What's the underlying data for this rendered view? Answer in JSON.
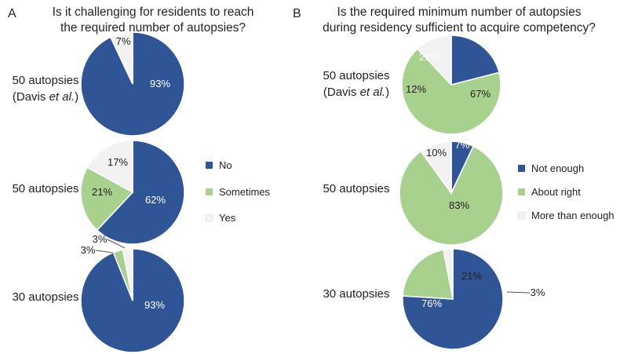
{
  "colors": {
    "dark": "#2f5597",
    "mid": "#a9d18e",
    "light": "#f2f2f2"
  },
  "chart_data": [
    {
      "type": "pie",
      "panel": "A",
      "title": [
        "Is it challenging for residents to reach",
        "the required number of autopsies?"
      ],
      "legend": [
        "No",
        "Sometimes",
        "Yes"
      ],
      "legend_position": "right",
      "rows": [
        {
          "label": [
            "50 autopsies",
            "(Davis ",
            "et al.",
            ")"
          ],
          "slices": [
            {
              "name": "No",
              "value": 93,
              "label": "93%"
            },
            {
              "name": "Sometimes",
              "value": 0,
              "label": ""
            },
            {
              "name": "Yes",
              "value": 7,
              "label": "7%"
            }
          ]
        },
        {
          "label": [
            "50 autopsies"
          ],
          "slices": [
            {
              "name": "No",
              "value": 62,
              "label": "62%"
            },
            {
              "name": "Sometimes",
              "value": 21,
              "label": "21%"
            },
            {
              "name": "Yes",
              "value": 17,
              "label": "17%"
            }
          ]
        },
        {
          "label": [
            "30 autopsies"
          ],
          "slices": [
            {
              "name": "No",
              "value": 93,
              "label": "93%"
            },
            {
              "name": "Sometimes",
              "value": 3,
              "label": "3%"
            },
            {
              "name": "Yes",
              "value": 3,
              "label": "3%"
            }
          ]
        }
      ]
    },
    {
      "type": "pie",
      "panel": "B",
      "title": [
        "Is the required minimum number of autopsies",
        "during residency sufficient to acquire competency?"
      ],
      "legend": [
        "Not enough",
        "About right",
        "More than enough"
      ],
      "legend_position": "right",
      "rows": [
        {
          "label": [
            "50 autopsies",
            "(Davis ",
            "et al.",
            ")"
          ],
          "slices": [
            {
              "name": "Not enough",
              "value": 21,
              "label": "21%"
            },
            {
              "name": "About right",
              "value": 67,
              "label": "67%"
            },
            {
              "name": "More than enough",
              "value": 12,
              "label": "12%"
            }
          ]
        },
        {
          "label": [
            "50 autopsies"
          ],
          "slices": [
            {
              "name": "Not enough",
              "value": 7,
              "label": "7%"
            },
            {
              "name": "About right",
              "value": 83,
              "label": "83%"
            },
            {
              "name": "More than enough",
              "value": 10,
              "label": "10%"
            }
          ]
        },
        {
          "label": [
            "30 autopsies"
          ],
          "slices": [
            {
              "name": "Not enough",
              "value": 76,
              "label": "76%"
            },
            {
              "name": "About right",
              "value": 21,
              "label": "21%"
            },
            {
              "name": "More than enough",
              "value": 3,
              "label": "3%"
            }
          ]
        }
      ]
    }
  ]
}
